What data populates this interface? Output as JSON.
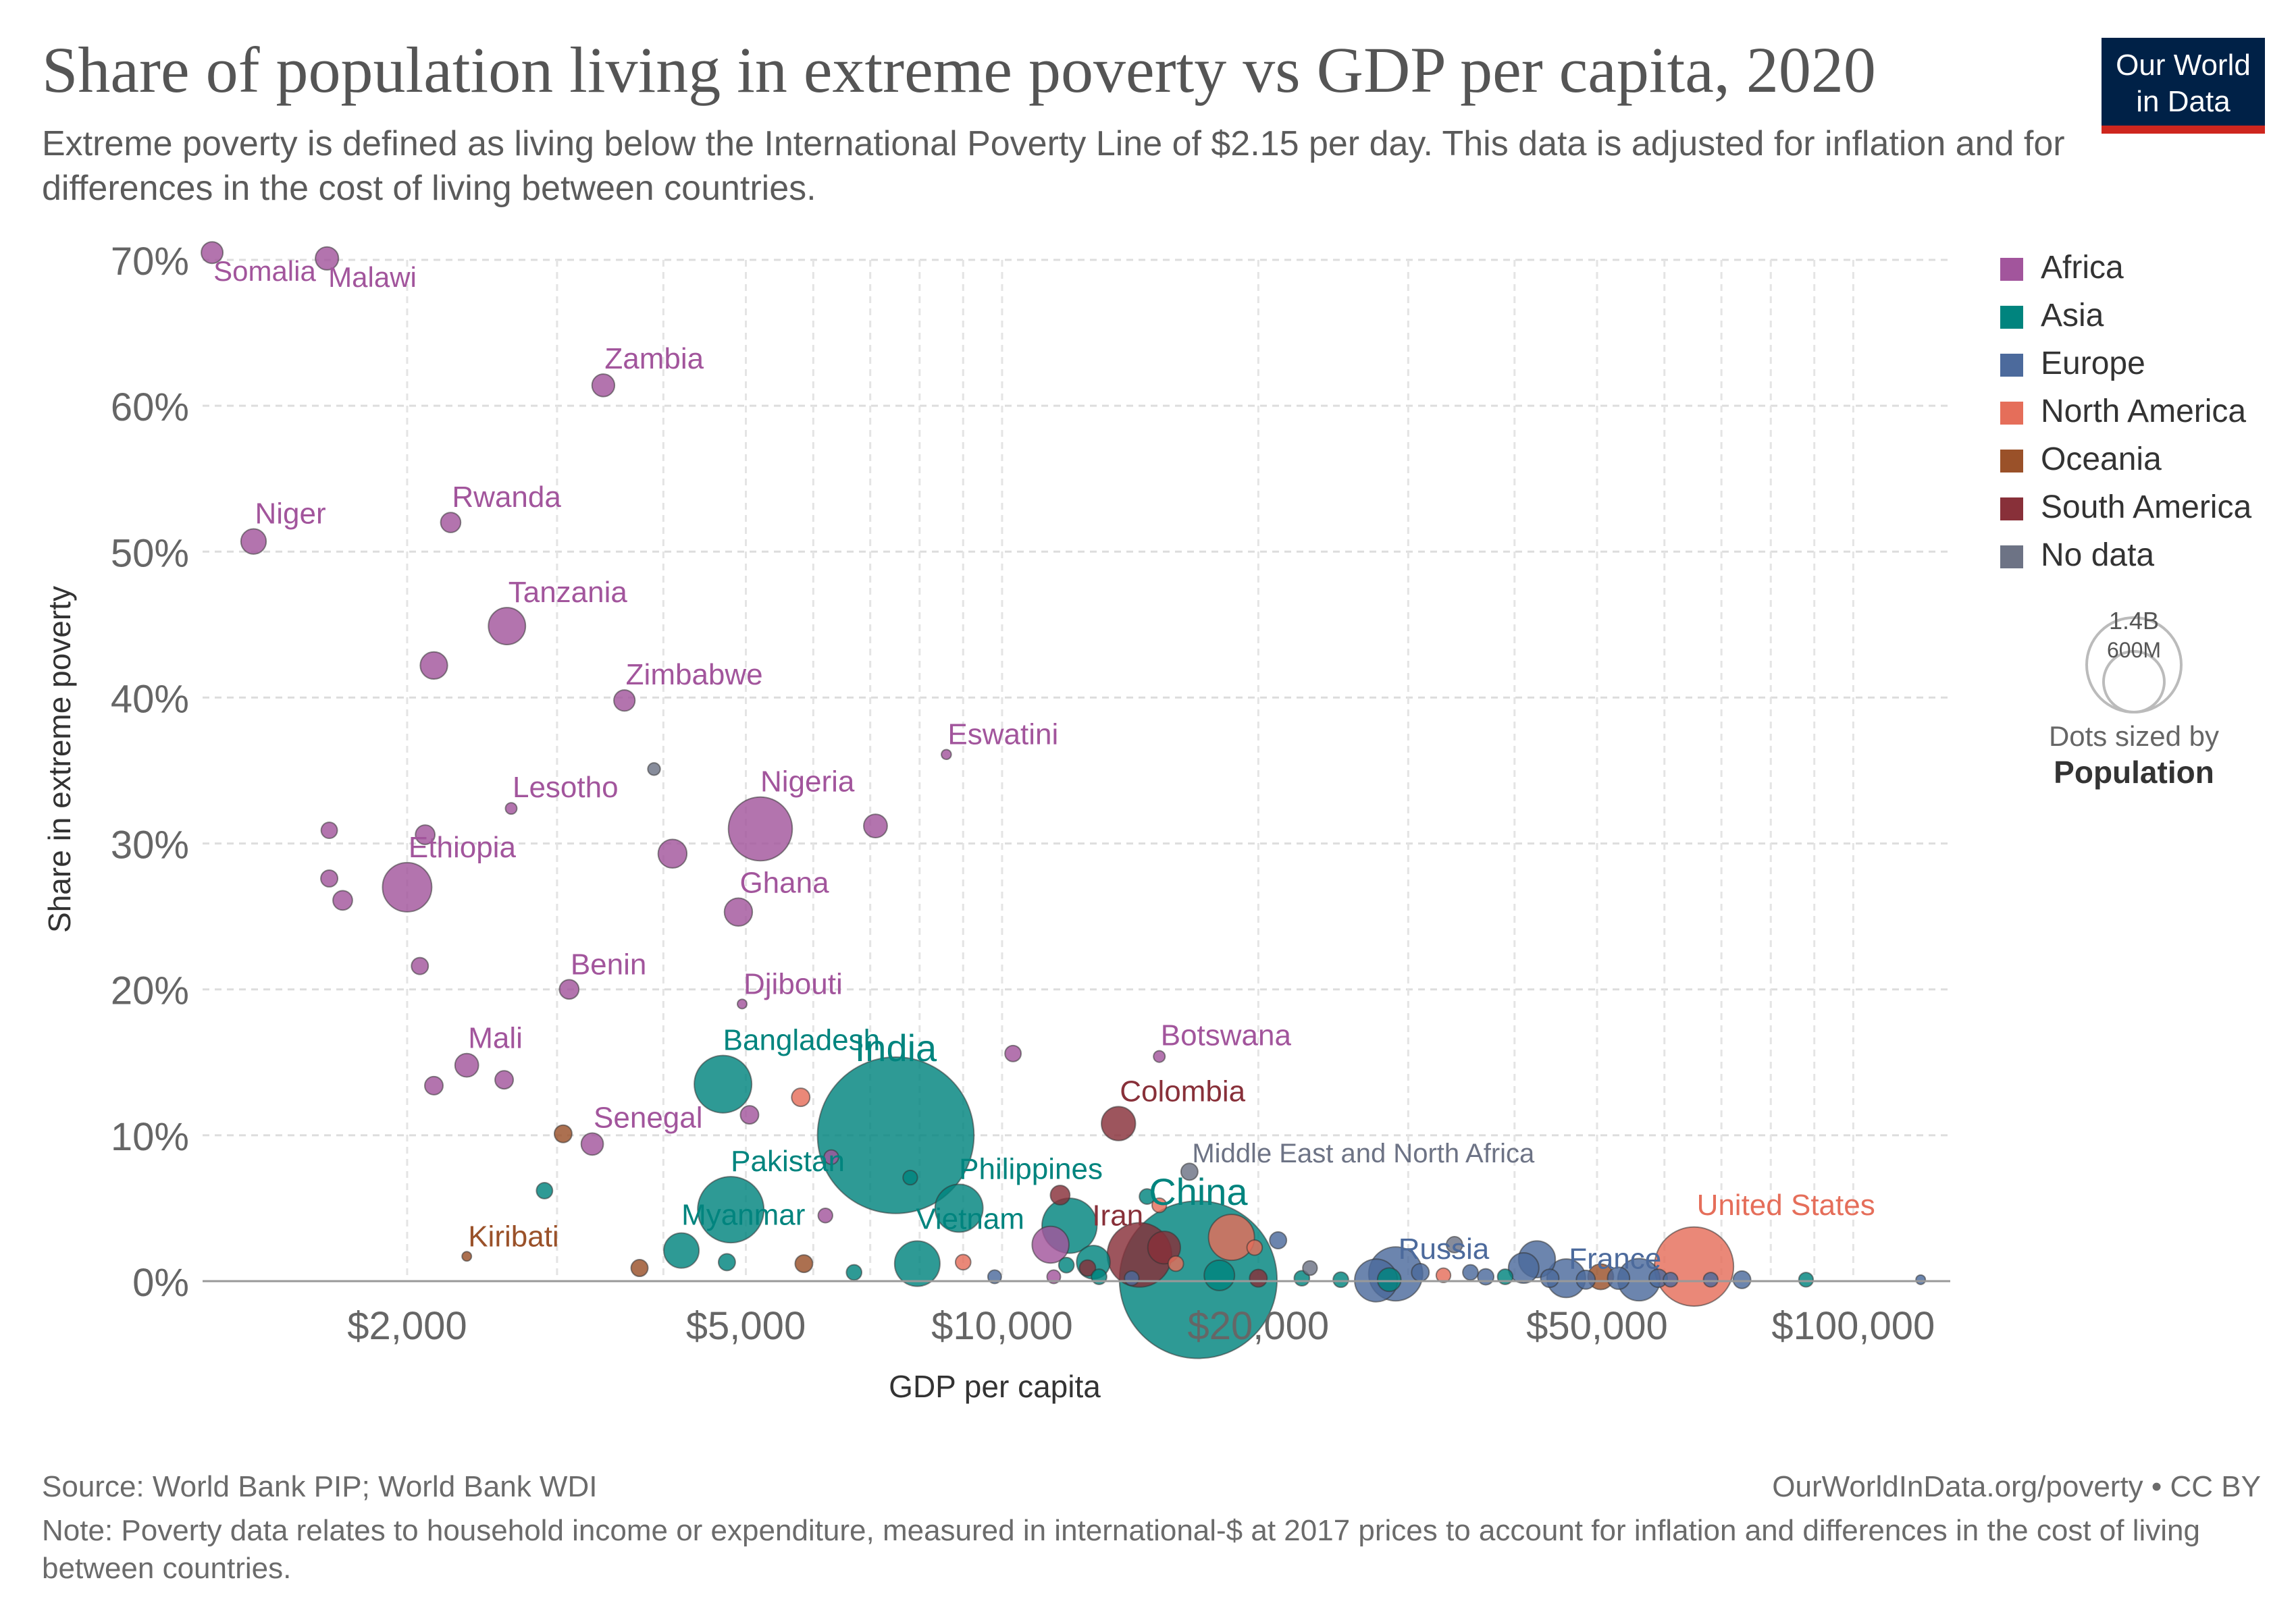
{
  "header": {
    "title": "Share of population living in extreme poverty vs GDP per capita, 2020",
    "subtitle": "Extreme poverty is defined as living below the International Poverty Line of $2.15 per day. This data is adjusted for inflation and for differences in the cost of living between countries.",
    "logo_line1": "Our World",
    "logo_line2": "in Data"
  },
  "footer": {
    "source": "Source: World Bank PIP; World Bank WDI",
    "url": "OurWorldInData.org/poverty • CC BY",
    "note": "Note: Poverty data relates to household income or expenditure, measured in international-$ at 2017 prices to account for inflation and differences in the cost of living between countries."
  },
  "colors": {
    "Africa": "#a2559c",
    "Asia": "#00847e",
    "Europe": "#4c6a9c",
    "North America": "#e56e5a",
    "Oceania": "#9a5129",
    "South America": "#883039",
    "No data": "#6d7385"
  },
  "chart_data": {
    "type": "scatter",
    "xlabel": "GDP per capita",
    "ylabel": "Share in extreme poverty",
    "x_scale": "log",
    "xlim": [
      1150,
      130000
    ],
    "ylim": [
      0,
      70
    ],
    "x_ticks": [
      2000,
      5000,
      10000,
      20000,
      50000,
      100000
    ],
    "x_tick_labels": [
      "$2,000",
      "$5,000",
      "$10,000",
      "$20,000",
      "$50,000",
      "$100,000"
    ],
    "y_ticks": [
      0,
      10,
      20,
      30,
      40,
      50,
      60,
      70
    ],
    "y_tick_labels": [
      "0%",
      "10%",
      "20%",
      "30%",
      "40%",
      "50%",
      "60%",
      "70%"
    ],
    "grid": true,
    "legend": {
      "placement": "right",
      "entries": [
        "Africa",
        "Asia",
        "Europe",
        "North America",
        "Oceania",
        "South America",
        "No data"
      ]
    },
    "size_legend": {
      "title_line1": "Dots sized by",
      "title_line2": "Population",
      "large_label": "1.4B",
      "small_label": "600M"
    },
    "points": [
      {
        "label": "Somalia",
        "x": 1180,
        "y": 70.5,
        "region": "Africa",
        "pop": 16
      },
      {
        "label": "Malawi",
        "x": 1610,
        "y": 70.1,
        "region": "Africa",
        "pop": 19
      },
      {
        "label": "Zambia",
        "x": 3400,
        "y": 61.4,
        "region": "Africa",
        "pop": 18
      },
      {
        "label": "Niger",
        "x": 1320,
        "y": 50.7,
        "region": "Africa",
        "pop": 24
      },
      {
        "label": "Rwanda",
        "x": 2250,
        "y": 52.0,
        "region": "Africa",
        "pop": 13
      },
      {
        "label": "Tanzania",
        "x": 2620,
        "y": 44.9,
        "region": "Africa",
        "pop": 61
      },
      {
        "label": "",
        "x": 2150,
        "y": 42.2,
        "region": "Africa",
        "pop": 29
      },
      {
        "label": "Zimbabwe",
        "x": 3600,
        "y": 39.8,
        "region": "Africa",
        "pop": 15
      },
      {
        "label": "Eswatini",
        "x": 8600,
        "y": 36.1,
        "region": "Africa",
        "pop": 1.2
      },
      {
        "label": "",
        "x": 3900,
        "y": 35.1,
        "region": "No data",
        "pop": 3
      },
      {
        "label": "Lesotho",
        "x": 2650,
        "y": 32.4,
        "region": "Africa",
        "pop": 2.2
      },
      {
        "label": "Nigeria",
        "x": 5200,
        "y": 31.0,
        "region": "Africa",
        "pop": 208
      },
      {
        "label": "",
        "x": 7100,
        "y": 31.2,
        "region": "Africa",
        "pop": 20
      },
      {
        "label": "",
        "x": 1620,
        "y": 30.9,
        "region": "Africa",
        "pop": 7
      },
      {
        "label": "",
        "x": 2100,
        "y": 30.6,
        "region": "Africa",
        "pop": 12
      },
      {
        "label": "",
        "x": 4100,
        "y": 29.3,
        "region": "Africa",
        "pop": 33
      },
      {
        "label": "Ethiopia",
        "x": 2000,
        "y": 27.0,
        "region": "Africa",
        "pop": 117
      },
      {
        "label": "",
        "x": 1620,
        "y": 27.6,
        "region": "Africa",
        "pop": 8
      },
      {
        "label": "",
        "x": 1680,
        "y": 26.1,
        "region": "Africa",
        "pop": 12
      },
      {
        "label": "Ghana",
        "x": 4900,
        "y": 25.3,
        "region": "Africa",
        "pop": 31
      },
      {
        "label": "",
        "x": 2070,
        "y": 21.6,
        "region": "Africa",
        "pop": 8
      },
      {
        "label": "Benin",
        "x": 3100,
        "y": 20.0,
        "region": "Africa",
        "pop": 12
      },
      {
        "label": "Djibouti",
        "x": 4950,
        "y": 19.0,
        "region": "Africa",
        "pop": 1
      },
      {
        "label": "",
        "x": 10300,
        "y": 15.6,
        "region": "Africa",
        "pop": 7
      },
      {
        "label": "Botswana",
        "x": 15300,
        "y": 15.4,
        "region": "Africa",
        "pop": 2.3
      },
      {
        "label": "Mali",
        "x": 2350,
        "y": 14.8,
        "region": "Africa",
        "pop": 20
      },
      {
        "label": "",
        "x": 2600,
        "y": 13.8,
        "region": "Africa",
        "pop": 10
      },
      {
        "label": "",
        "x": 2150,
        "y": 13.4,
        "region": "Africa",
        "pop": 10
      },
      {
        "label": "Bangladesh",
        "x": 4700,
        "y": 13.5,
        "region": "Asia",
        "pop": 165
      },
      {
        "label": "",
        "x": 5800,
        "y": 12.6,
        "region": "North America",
        "pop": 10
      },
      {
        "label": "India",
        "x": 7500,
        "y": 10.0,
        "region": "Asia",
        "pop": 1390
      },
      {
        "label": "",
        "x": 5050,
        "y": 11.4,
        "region": "Africa",
        "pop": 10
      },
      {
        "label": "Colombia",
        "x": 13700,
        "y": 10.8,
        "region": "South America",
        "pop": 50
      },
      {
        "label": "",
        "x": 3050,
        "y": 10.1,
        "region": "Oceania",
        "pop": 9
      },
      {
        "label": "Senegal",
        "x": 3300,
        "y": 9.4,
        "region": "Africa",
        "pop": 17
      },
      {
        "label": "",
        "x": 6300,
        "y": 8.5,
        "region": "Africa",
        "pop": 5
      },
      {
        "label": "Middle East and North Africa",
        "x": 16600,
        "y": 7.5,
        "region": "No data",
        "pop": 8
      },
      {
        "label": "",
        "x": 7800,
        "y": 7.1,
        "region": "Asia",
        "pop": 5
      },
      {
        "label": "",
        "x": 2900,
        "y": 6.2,
        "region": "Asia",
        "pop": 7
      },
      {
        "label": "",
        "x": 11700,
        "y": 5.9,
        "region": "South America",
        "pop": 12
      },
      {
        "label": "",
        "x": 14800,
        "y": 5.8,
        "region": "Asia",
        "pop": 6
      },
      {
        "label": "",
        "x": 15300,
        "y": 5.2,
        "region": "North America",
        "pop": 5
      },
      {
        "label": "Pakistan",
        "x": 4800,
        "y": 4.9,
        "region": "Asia",
        "pop": 225
      },
      {
        "label": "Philippines",
        "x": 8900,
        "y": 5.0,
        "region": "Asia",
        "pop": 110
      },
      {
        "label": "",
        "x": 6200,
        "y": 4.5,
        "region": "Africa",
        "pop": 5
      },
      {
        "label": "",
        "x": 12000,
        "y": 3.8,
        "region": "Asia",
        "pop": 150
      },
      {
        "label": "China",
        "x": 17000,
        "y": 0.1,
        "region": "Asia",
        "pop": 1410
      },
      {
        "label": "",
        "x": 18600,
        "y": 3.0,
        "region": "North America",
        "pop": 100
      },
      {
        "label": "",
        "x": 21100,
        "y": 2.8,
        "region": "Europe",
        "pop": 8
      },
      {
        "label": "",
        "x": 19800,
        "y": 2.3,
        "region": "North America",
        "pop": 6
      },
      {
        "label": "Myanmar",
        "x": 4200,
        "y": 2.1,
        "region": "Asia",
        "pop": 54
      },
      {
        "label": "",
        "x": 11400,
        "y": 2.5,
        "region": "Africa",
        "pop": 60
      },
      {
        "label": "Iran",
        "x": 14500,
        "y": 1.8,
        "region": "South America",
        "pop": 212
      },
      {
        "label": "",
        "x": 15500,
        "y": 2.3,
        "region": "South America",
        "pop": 45
      },
      {
        "label": "Kiribati",
        "x": 2350,
        "y": 1.7,
        "region": "Oceania",
        "pop": 0.12
      },
      {
        "label": "Vietnam",
        "x": 7950,
        "y": 1.2,
        "region": "Asia",
        "pop": 97
      },
      {
        "label": "",
        "x": 4750,
        "y": 1.3,
        "region": "Asia",
        "pop": 8
      },
      {
        "label": "",
        "x": 5850,
        "y": 1.2,
        "region": "Oceania",
        "pop": 9
      },
      {
        "label": "",
        "x": 9000,
        "y": 1.3,
        "region": "North America",
        "pop": 6
      },
      {
        "label": "",
        "x": 12800,
        "y": 1.3,
        "region": "Asia",
        "pop": 48
      },
      {
        "label": "",
        "x": 3750,
        "y": 0.9,
        "region": "Oceania",
        "pop": 8
      },
      {
        "label": "",
        "x": 6700,
        "y": 0.6,
        "region": "Asia",
        "pop": 6
      },
      {
        "label": "",
        "x": 12600,
        "y": 0.9,
        "region": "South America",
        "pop": 7
      },
      {
        "label": "",
        "x": 11900,
        "y": 1.1,
        "region": "Asia",
        "pop": 6
      },
      {
        "label": "",
        "x": 16000,
        "y": 1.2,
        "region": "North America",
        "pop": 6
      },
      {
        "label": "",
        "x": 18000,
        "y": 0.4,
        "region": "Asia",
        "pop": 38
      },
      {
        "label": "",
        "x": 9800,
        "y": 0.3,
        "region": "Europe",
        "pop": 4
      },
      {
        "label": "",
        "x": 11500,
        "y": 0.3,
        "region": "Africa",
        "pop": 4
      },
      {
        "label": "",
        "x": 13000,
        "y": 0.3,
        "region": "Asia",
        "pop": 6
      },
      {
        "label": "",
        "x": 14200,
        "y": 0.2,
        "region": "Europe",
        "pop": 5
      },
      {
        "label": "",
        "x": 20000,
        "y": 0.2,
        "region": "South America",
        "pop": 9
      },
      {
        "label": "",
        "x": 22500,
        "y": 0.2,
        "region": "Asia",
        "pop": 6
      },
      {
        "label": "",
        "x": 23000,
        "y": 0.9,
        "region": "No data",
        "pop": 5
      },
      {
        "label": "",
        "x": 25000,
        "y": 0.1,
        "region": "Asia",
        "pop": 6
      },
      {
        "label": "",
        "x": 27500,
        "y": 0.05,
        "region": "Europe",
        "pop": 85
      },
      {
        "label": "",
        "x": 28500,
        "y": 0.1,
        "region": "Asia",
        "pop": 20
      },
      {
        "label": "Russia",
        "x": 29000,
        "y": 0.5,
        "region": "Europe",
        "pop": 144
      },
      {
        "label": "",
        "x": 31000,
        "y": 0.6,
        "region": "Europe",
        "pop": 9
      },
      {
        "label": "",
        "x": 33000,
        "y": 0.4,
        "region": "North America",
        "pop": 5
      },
      {
        "label": "",
        "x": 34000,
        "y": 2.5,
        "region": "No data",
        "pop": 7
      },
      {
        "label": "",
        "x": 35500,
        "y": 0.6,
        "region": "Europe",
        "pop": 6
      },
      {
        "label": "",
        "x": 37000,
        "y": 0.3,
        "region": "Europe",
        "pop": 7
      },
      {
        "label": "",
        "x": 39000,
        "y": 0.3,
        "region": "Asia",
        "pop": 6
      },
      {
        "label": "",
        "x": 41000,
        "y": 0.9,
        "region": "Europe",
        "pop": 38
      },
      {
        "label": "",
        "x": 42500,
        "y": 1.5,
        "region": "Europe",
        "pop": 60
      },
      {
        "label": "",
        "x": 44000,
        "y": 0.2,
        "region": "Europe",
        "pop": 10
      },
      {
        "label": "France",
        "x": 46000,
        "y": 0.2,
        "region": "Europe",
        "pop": 67
      },
      {
        "label": "",
        "x": 48500,
        "y": 0.1,
        "region": "Europe",
        "pop": 11
      },
      {
        "label": "",
        "x": 50500,
        "y": 0.3,
        "region": "Oceania",
        "pop": 25
      },
      {
        "label": "",
        "x": 53000,
        "y": 0.2,
        "region": "Europe",
        "pop": 17
      },
      {
        "label": "",
        "x": 56000,
        "y": 0.1,
        "region": "Europe",
        "pop": 83
      },
      {
        "label": "",
        "x": 59000,
        "y": 0.2,
        "region": "Europe",
        "pop": 10
      },
      {
        "label": "",
        "x": 61000,
        "y": 0.1,
        "region": "Europe",
        "pop": 5
      },
      {
        "label": "United States",
        "x": 65000,
        "y": 1.0,
        "region": "North America",
        "pop": 331
      },
      {
        "label": "",
        "x": 68000,
        "y": 0.1,
        "region": "Europe",
        "pop": 5
      },
      {
        "label": "",
        "x": 74000,
        "y": 0.1,
        "region": "Europe",
        "pop": 9
      },
      {
        "label": "",
        "x": 88000,
        "y": 0.1,
        "region": "Asia",
        "pop": 5
      },
      {
        "label": "",
        "x": 120000,
        "y": 0.1,
        "region": "Europe",
        "pop": 0.6
      }
    ]
  }
}
